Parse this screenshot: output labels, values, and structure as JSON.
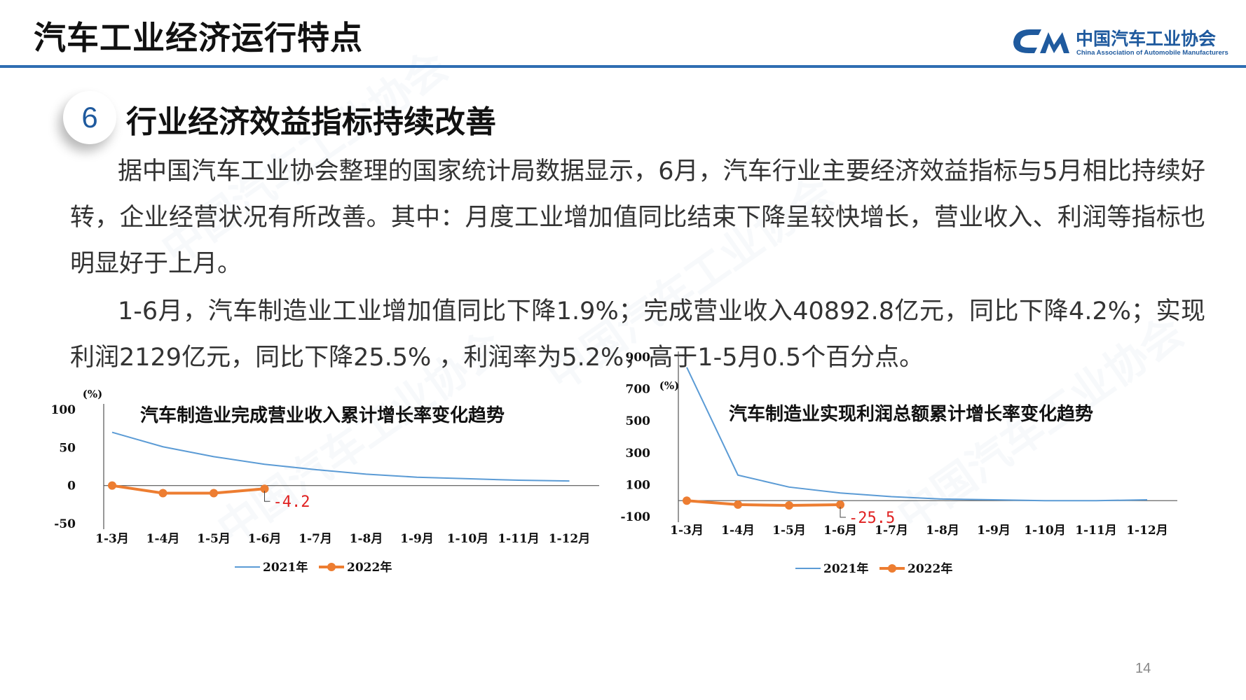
{
  "header": {
    "title": "汽车工业经济运行特点",
    "logo_cn": "中国汽车工业协会",
    "logo_en": "China Association of Automobile Manufacturers",
    "accent_color": "#2f6eb2"
  },
  "section": {
    "number": "6",
    "title": "行业经济效益指标持续改善"
  },
  "paragraphs": [
    "据中国汽车工业协会整理的国家统计局数据显示，6月，汽车行业主要经济效益指标与5月相比持续好转，企业经营状况有所改善。其中：月度工业增加值同比结束下降呈较快增长，营业收入、利润等指标也明显好于上月。",
    "1-6月，汽车制造业工业增加值同比下降1.9%；完成营业收入40892.8亿元，同比下降4.2%；实现利润2129亿元，同比下降25.5% ，利润率为5.2%，高于1-5月0.5个百分点。"
  ],
  "page_number": "14",
  "chart_data": [
    {
      "type": "line",
      "title": "汽车制造业完成营业收入累计增长率变化趋势",
      "ylabel": "(%)",
      "categories": [
        "1-3月",
        "1-4月",
        "1-5月",
        "1-6月",
        "1-7月",
        "1-8月",
        "1-9月",
        "1-10月",
        "1-11月",
        "1-12月"
      ],
      "ylim": [
        -50,
        100
      ],
      "yticks": [
        -50,
        0,
        50,
        100
      ],
      "series": [
        {
          "name": "2021年",
          "color": "#5b9bd5",
          "marker": false,
          "values": [
            70,
            51,
            38,
            28,
            21,
            15,
            11,
            9,
            7,
            6
          ]
        },
        {
          "name": "2022年",
          "color": "#ed7d31",
          "marker": true,
          "values": [
            0,
            -10,
            -10,
            -4.2,
            null,
            null,
            null,
            null,
            null,
            null
          ]
        }
      ],
      "annotation": {
        "text": "-4.2",
        "series": 1,
        "index": 3,
        "color": "#e02020"
      },
      "legend": "bottom-center",
      "grid": false
    },
    {
      "type": "line",
      "title": "汽车制造业实现利润总额累计增长率变化趋势",
      "ylabel": "(%)",
      "categories": [
        "1-3月",
        "1-4月",
        "1-5月",
        "1-6月",
        "1-7月",
        "1-8月",
        "1-9月",
        "1-10月",
        "1-11月",
        "1-12月"
      ],
      "ylim": [
        -100,
        900
      ],
      "yticks": [
        -100,
        100,
        300,
        500,
        700,
        900
      ],
      "series": [
        {
          "name": "2021年",
          "color": "#5b9bd5",
          "marker": false,
          "values": [
            835,
            160,
            85,
            48,
            25,
            10,
            5,
            0,
            0,
            5
          ]
        },
        {
          "name": "2022年",
          "color": "#ed7d31",
          "marker": true,
          "values": [
            0,
            -25,
            -30,
            -25.5,
            null,
            null,
            null,
            null,
            null,
            null
          ]
        }
      ],
      "annotation": {
        "text": "-25.5",
        "series": 1,
        "index": 3,
        "color": "#e02020"
      },
      "legend": "bottom-center",
      "grid": false
    }
  ]
}
